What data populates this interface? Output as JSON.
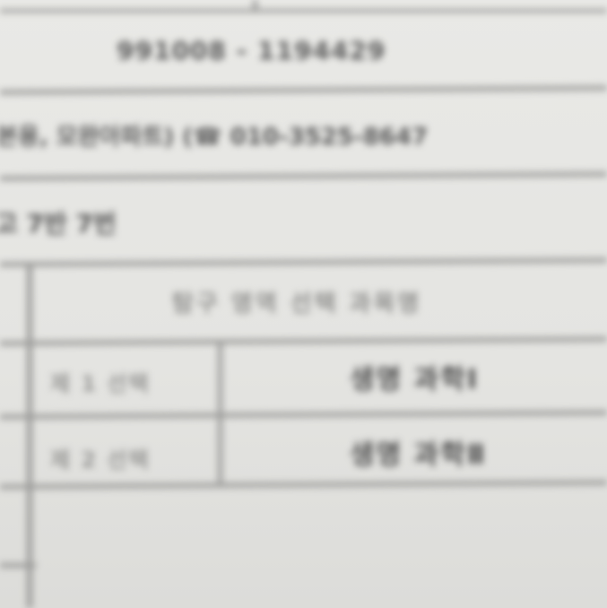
{
  "document": {
    "id_line": "991008 - 1194429",
    "info_line": "본용, 모완아파트) (☎ 010-3525-8647",
    "sub_line": "고 7반 7번",
    "table": {
      "header": "탐구 영역 선택 과목명",
      "rows": [
        {
          "label": "제 1 선택",
          "value": "생명 과학Ⅰ"
        },
        {
          "label": "제 2 선택",
          "value": "생명 과학Ⅱ"
        }
      ]
    }
  }
}
